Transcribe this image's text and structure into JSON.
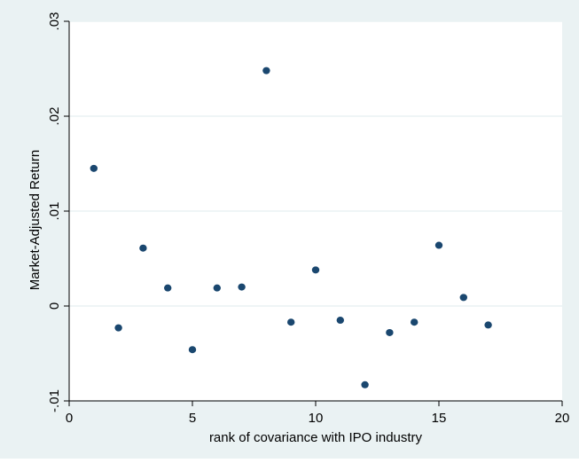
{
  "chart_data": {
    "type": "scatter",
    "title": "",
    "xlabel": "rank of covariance with IPO industry",
    "ylabel": "Market-Adjusted Return",
    "xlim": [
      0,
      20
    ],
    "ylim": [
      -0.01,
      0.03
    ],
    "xticks": [
      0,
      5,
      10,
      15,
      20
    ],
    "xtick_labels": [
      "0",
      "5",
      "10",
      "15",
      "20"
    ],
    "yticks": [
      -0.01,
      0,
      0.01,
      0.02,
      0.03
    ],
    "ytick_labels": [
      "-.01",
      "0",
      ".01",
      ".02",
      ".03"
    ],
    "grid": "horizontal",
    "colors": {
      "outer_background": "#eaf2f3",
      "plot_background": "#ffffff",
      "grid": "#eaf2f3",
      "marker": "#1a476f",
      "axis": "#000000"
    },
    "series": [
      {
        "points": [
          {
            "x": 1,
            "y": 0.0145
          },
          {
            "x": 2,
            "y": -0.0023
          },
          {
            "x": 3,
            "y": 0.0061
          },
          {
            "x": 4,
            "y": 0.0019
          },
          {
            "x": 5,
            "y": -0.0046
          },
          {
            "x": 6,
            "y": 0.0019
          },
          {
            "x": 7,
            "y": 0.002
          },
          {
            "x": 8,
            "y": 0.0248
          },
          {
            "x": 9,
            "y": -0.0017
          },
          {
            "x": 10,
            "y": 0.0038
          },
          {
            "x": 11,
            "y": -0.0015
          },
          {
            "x": 12,
            "y": -0.0083
          },
          {
            "x": 13,
            "y": -0.0028
          },
          {
            "x": 14,
            "y": -0.0017
          },
          {
            "x": 15,
            "y": 0.0064
          },
          {
            "x": 16,
            "y": 0.0009
          },
          {
            "x": 17,
            "y": -0.002
          }
        ]
      }
    ]
  }
}
